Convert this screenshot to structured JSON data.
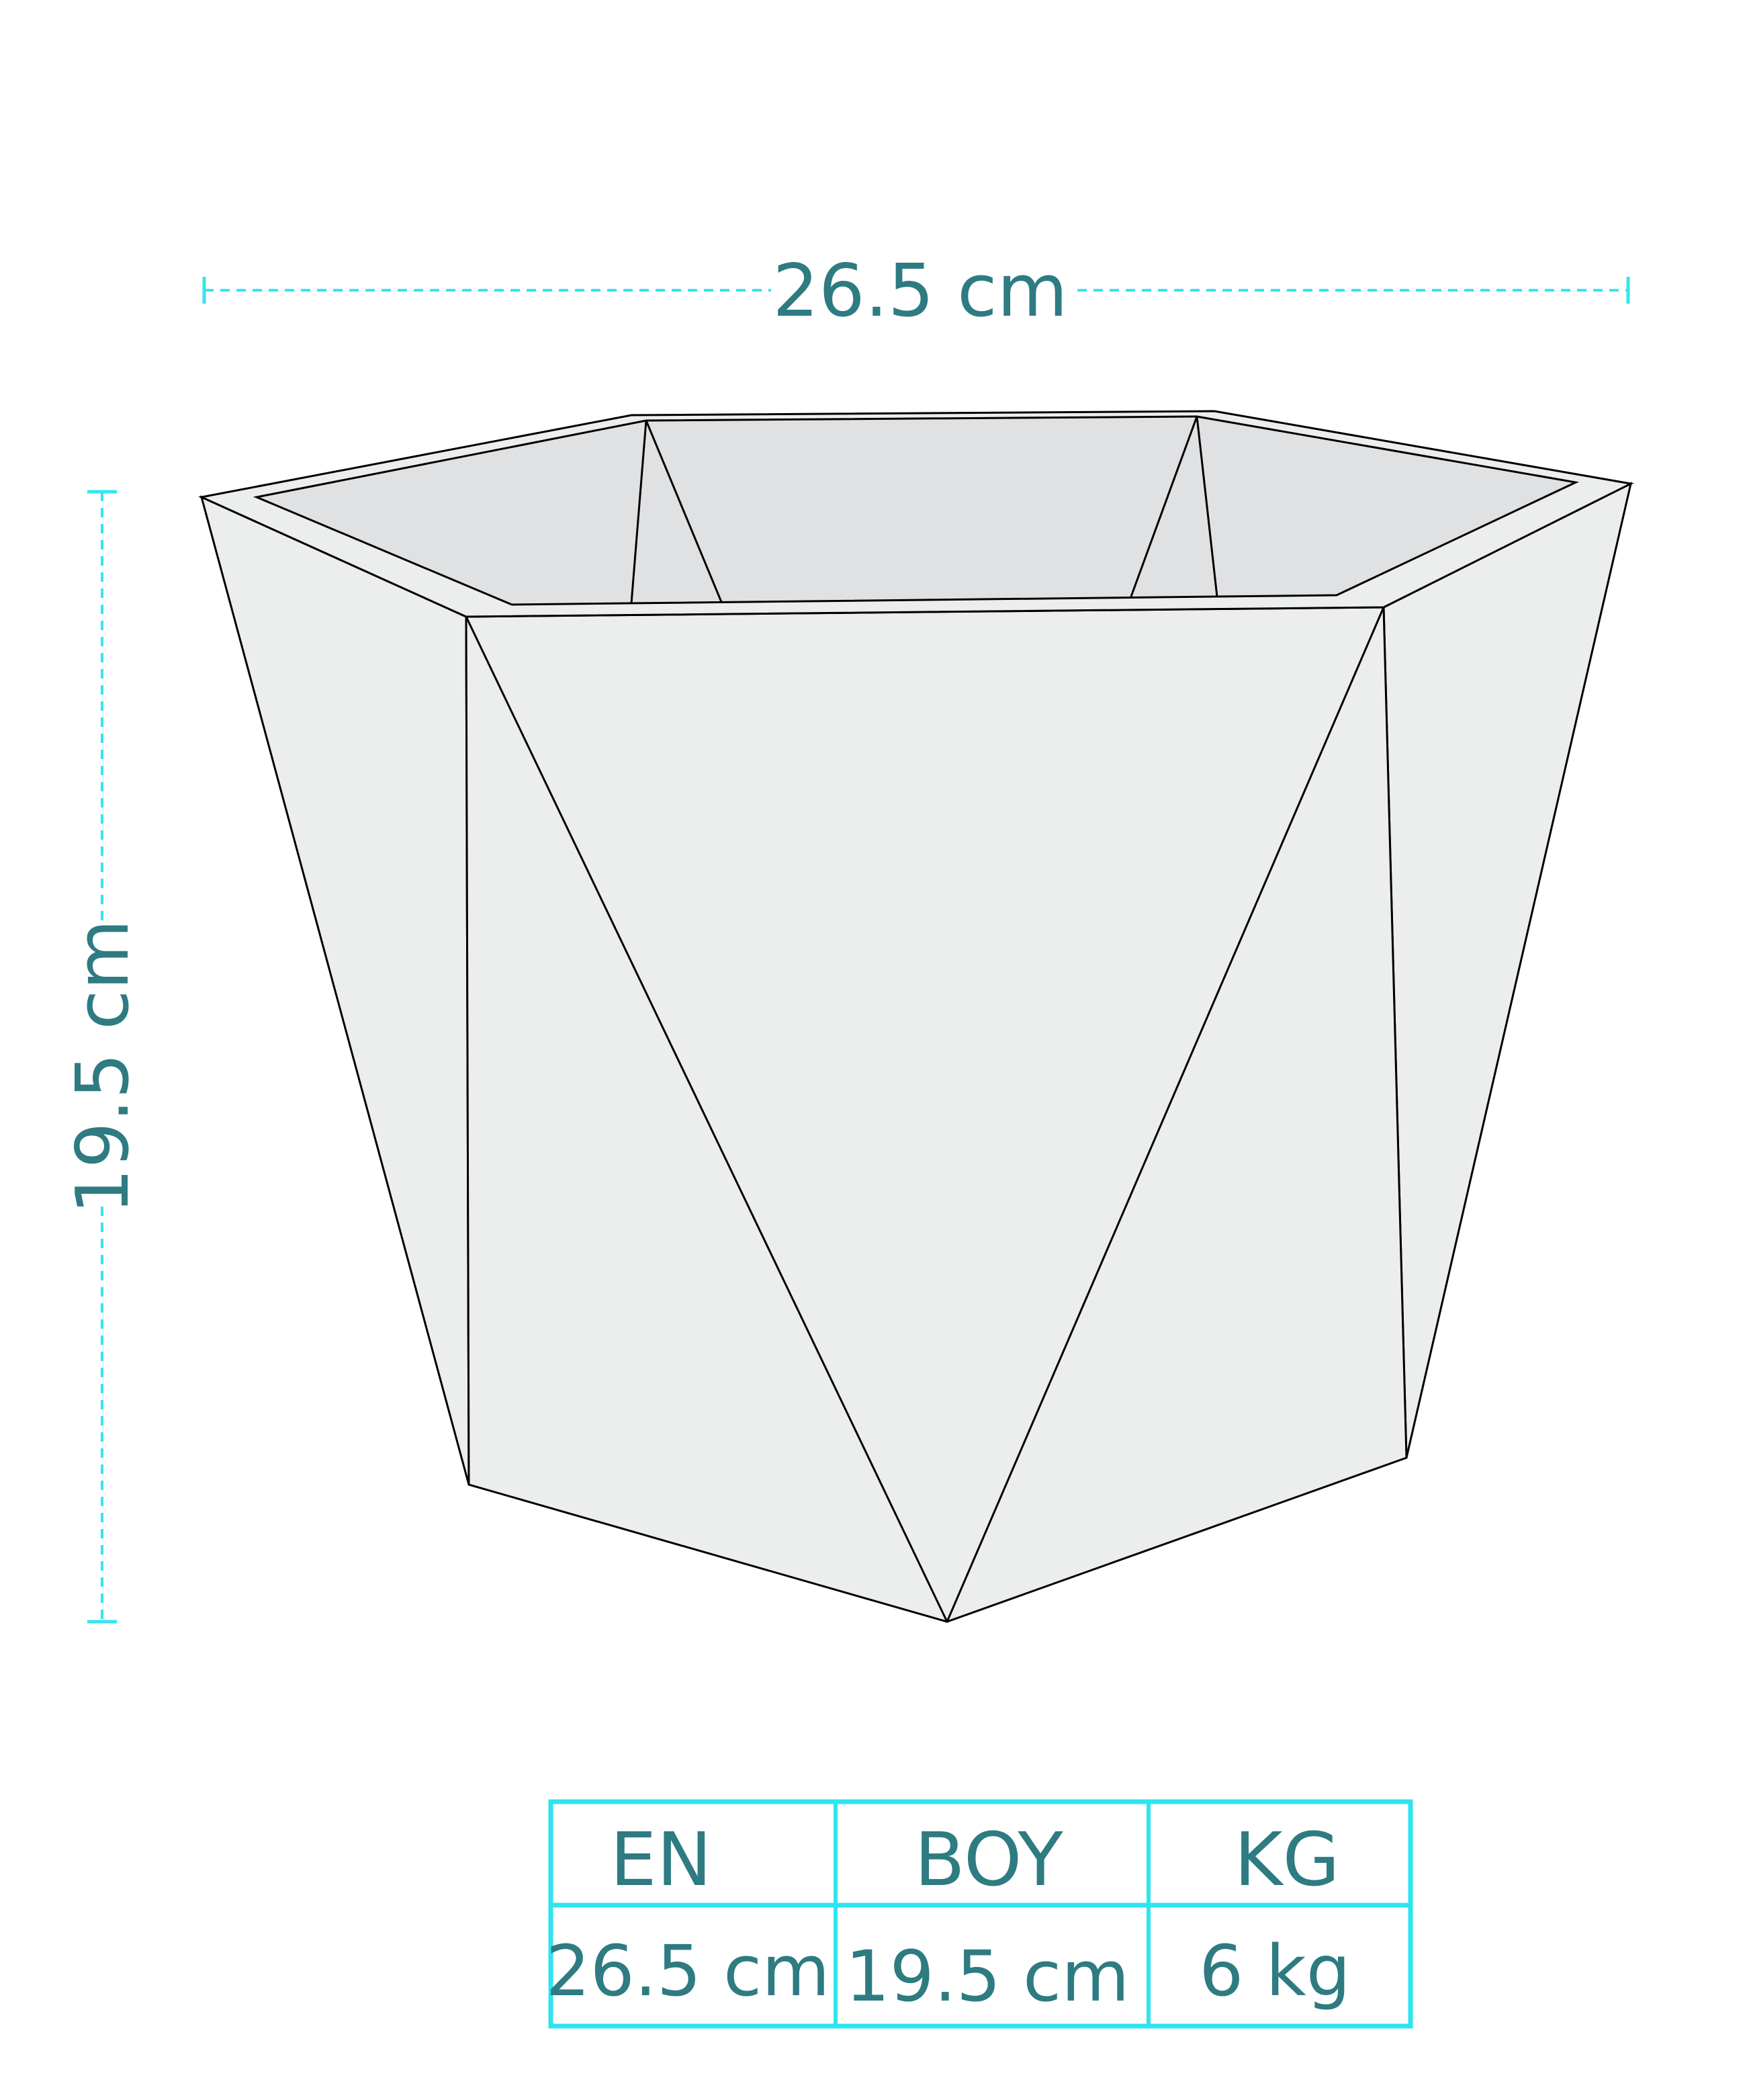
{
  "dimensions": {
    "width_label": "26.5 cm",
    "height_label": "19.5 cm"
  },
  "table": {
    "headers": [
      "EN",
      "BOY",
      "KG"
    ],
    "values": [
      "26.5 cm",
      "19.5 cm",
      "6 kg"
    ]
  },
  "colors": {
    "dimension_line": "#33e6ee",
    "label_text": "#2e7b82",
    "table_border": "#2ce5ef",
    "pot_outer_face": "#eceeed",
    "pot_inner_face": "#e0e1e3",
    "pot_outline": "#000000"
  }
}
